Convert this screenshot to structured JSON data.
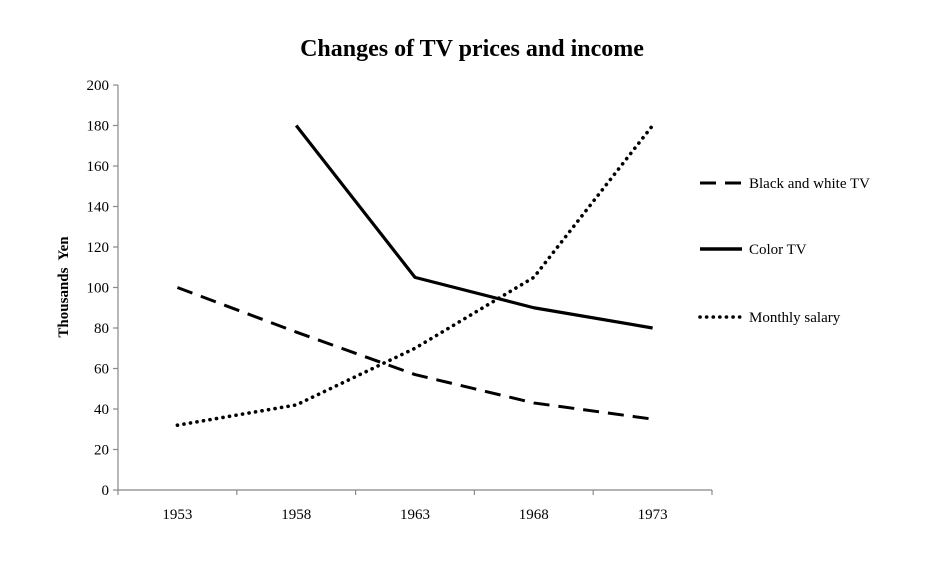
{
  "chart_data": {
    "type": "line",
    "title": "Changes of TV prices and income",
    "xlabel": "",
    "ylabel": "Thousands  Yen",
    "categories": [
      "1953",
      "1958",
      "1963",
      "1968",
      "1973"
    ],
    "ylim": [
      0,
      200
    ],
    "yticks": [
      0,
      20,
      40,
      60,
      80,
      100,
      120,
      140,
      160,
      180,
      200
    ],
    "grid": false,
    "legend_position": "right",
    "series": [
      {
        "name": "Black and white TV",
        "values": [
          100,
          78,
          57,
          43,
          35
        ],
        "style": "dashed",
        "color": "#000000"
      },
      {
        "name": "Color TV",
        "values": [
          null,
          180,
          105,
          90,
          80
        ],
        "style": "solid",
        "color": "#000000"
      },
      {
        "name": "Monthly salary",
        "values": [
          32,
          42,
          70,
          105,
          180
        ],
        "style": "dotted",
        "color": "#000000"
      }
    ]
  }
}
